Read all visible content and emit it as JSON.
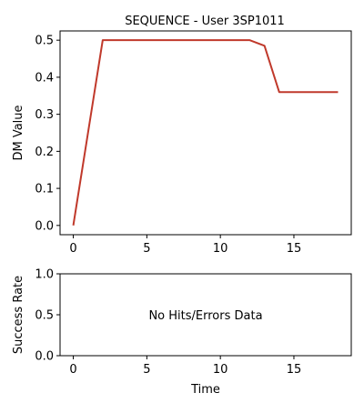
{
  "chart_data": [
    {
      "type": "line",
      "title": "SEQUENCE - User 3SP1011",
      "xlabel": "",
      "ylabel": "DM Value",
      "xlim": [
        -0.9,
        18.9
      ],
      "ylim": [
        -0.025,
        0.525
      ],
      "xticks": [
        0,
        5,
        10,
        15
      ],
      "yticks": [
        0.0,
        0.1,
        0.2,
        0.3,
        0.4,
        0.5
      ],
      "xtick_labels": [
        "0",
        "5",
        "10",
        "15"
      ],
      "ytick_labels": [
        "0.0",
        "0.1",
        "0.2",
        "0.3",
        "0.4",
        "0.5"
      ],
      "grid": false,
      "series": [
        {
          "color": "#c0392b",
          "x": [
            0,
            2,
            3,
            4,
            5,
            6,
            7,
            8,
            9,
            10,
            11,
            12,
            13,
            14,
            15,
            16,
            17,
            18
          ],
          "y": [
            0.0,
            0.5,
            0.5,
            0.5,
            0.5,
            0.5,
            0.5,
            0.5,
            0.5,
            0.5,
            0.5,
            0.5,
            0.485,
            0.36,
            0.36,
            0.36,
            0.36,
            0.36
          ]
        }
      ]
    },
    {
      "type": "line",
      "title": "",
      "xlabel": "Time",
      "ylabel": "Success Rate",
      "xlim": [
        -0.9,
        18.9
      ],
      "ylim": [
        0.0,
        1.0
      ],
      "xticks": [
        0,
        5,
        10,
        15
      ],
      "yticks": [
        0.0,
        0.5,
        1.0
      ],
      "xtick_labels": [
        "0",
        "5",
        "10",
        "15"
      ],
      "ytick_labels": [
        "0.0",
        "0.5",
        "1.0"
      ],
      "grid": false,
      "annotation": "No Hits/Errors Data",
      "series": []
    }
  ]
}
